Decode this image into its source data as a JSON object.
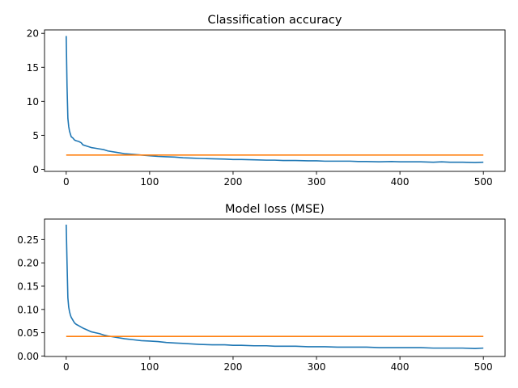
{
  "chart_data": [
    {
      "type": "line",
      "title": "Classification accuracy",
      "xlim": [
        -26,
        526
      ],
      "ylim": [
        -0.3,
        20.5
      ],
      "xticks": [
        0,
        100,
        200,
        300,
        400,
        500
      ],
      "yticks": [
        0,
        5,
        10,
        15,
        20
      ],
      "xtick_labels": [
        "0",
        "100",
        "200",
        "300",
        "400",
        "500"
      ],
      "ytick_labels": [
        "0",
        "5",
        "10",
        "15",
        "20"
      ],
      "grid": false,
      "series": [
        {
          "color": "#1f77b4",
          "x": [
            0,
            1,
            2,
            3,
            4,
            5,
            6,
            8,
            10,
            12,
            15,
            18,
            20,
            25,
            30,
            35,
            40,
            45,
            50,
            60,
            70,
            80,
            90,
            100,
            110,
            120,
            130,
            140,
            150,
            160,
            175,
            190,
            200,
            210,
            225,
            240,
            250,
            260,
            275,
            290,
            300,
            310,
            325,
            340,
            350,
            360,
            375,
            390,
            400,
            410,
            425,
            440,
            450,
            460,
            475,
            490,
            500
          ],
          "y": [
            19.6,
            12.2,
            7.5,
            6.3,
            5.6,
            5.2,
            4.8,
            4.6,
            4.3,
            4.2,
            4.1,
            3.9,
            3.6,
            3.4,
            3.2,
            3.1,
            3.0,
            2.9,
            2.7,
            2.5,
            2.3,
            2.2,
            2.1,
            2.0,
            1.9,
            1.85,
            1.8,
            1.7,
            1.65,
            1.6,
            1.55,
            1.5,
            1.45,
            1.45,
            1.4,
            1.35,
            1.35,
            1.3,
            1.3,
            1.25,
            1.25,
            1.2,
            1.2,
            1.2,
            1.15,
            1.15,
            1.1,
            1.15,
            1.1,
            1.1,
            1.1,
            1.05,
            1.1,
            1.05,
            1.05,
            1.0,
            1.05
          ]
        },
        {
          "color": "#ff7f0e",
          "x": [
            0,
            500
          ],
          "y": [
            2.1,
            2.1
          ]
        }
      ]
    },
    {
      "type": "line",
      "title": "Model loss (MSE)",
      "xlim": [
        -26,
        526
      ],
      "ylim": [
        -0.001,
        0.294
      ],
      "xticks": [
        0,
        100,
        200,
        300,
        400,
        500
      ],
      "yticks": [
        0.0,
        0.05,
        0.1,
        0.15,
        0.2,
        0.25
      ],
      "xtick_labels": [
        "0",
        "100",
        "200",
        "300",
        "400",
        "500"
      ],
      "ytick_labels": [
        "0.00",
        "0.05",
        "0.10",
        "0.15",
        "0.20",
        "0.25"
      ],
      "grid": false,
      "series": [
        {
          "color": "#1f77b4",
          "x": [
            0,
            1,
            2,
            3,
            4,
            5,
            6,
            8,
            10,
            12,
            15,
            18,
            20,
            25,
            30,
            35,
            40,
            45,
            50,
            60,
            70,
            80,
            90,
            100,
            110,
            120,
            130,
            140,
            150,
            160,
            175,
            190,
            200,
            210,
            225,
            240,
            250,
            260,
            275,
            290,
            300,
            310,
            325,
            340,
            350,
            360,
            375,
            390,
            400,
            410,
            425,
            440,
            450,
            460,
            475,
            490,
            500
          ],
          "y": [
            0.282,
            0.2,
            0.125,
            0.105,
            0.095,
            0.088,
            0.083,
            0.077,
            0.071,
            0.068,
            0.065,
            0.062,
            0.06,
            0.056,
            0.052,
            0.05,
            0.048,
            0.045,
            0.043,
            0.04,
            0.037,
            0.035,
            0.033,
            0.032,
            0.031,
            0.029,
            0.028,
            0.027,
            0.026,
            0.025,
            0.024,
            0.024,
            0.023,
            0.023,
            0.022,
            0.022,
            0.021,
            0.021,
            0.021,
            0.02,
            0.02,
            0.02,
            0.019,
            0.019,
            0.019,
            0.019,
            0.018,
            0.018,
            0.018,
            0.018,
            0.018,
            0.017,
            0.017,
            0.017,
            0.017,
            0.016,
            0.017
          ]
        },
        {
          "color": "#ff7f0e",
          "x": [
            0,
            500
          ],
          "y": [
            0.042,
            0.042
          ]
        }
      ]
    }
  ]
}
